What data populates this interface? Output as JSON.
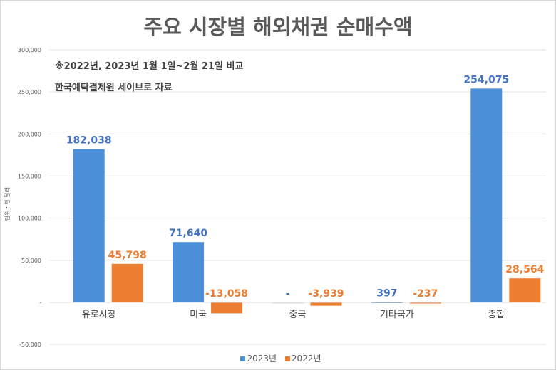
{
  "chart_data": {
    "type": "bar",
    "title": "주요 시장별 해외채권 순매수액",
    "annotations": [
      "※2022년, 2023년 1월 1일~2월 21일 비교",
      "한국예탁결제원 세이브로 자료"
    ],
    "ylabel": "단위 : 만 달러",
    "ylim": [
      -50000,
      300000
    ],
    "yticks": [
      -50000,
      0,
      50000,
      100000,
      150000,
      200000,
      250000,
      300000
    ],
    "ytick_labels": [
      "-50,000",
      "-",
      "50,000",
      "100,000",
      "150,000",
      "200,000",
      "250,000",
      "300,000"
    ],
    "grid": true,
    "legend_position": "bottom",
    "categories": [
      "유로시장",
      "미국",
      "중국",
      "기타국가",
      "종합"
    ],
    "series": [
      {
        "name": "2023년",
        "color": "#4a8fd8",
        "values": [
          182038,
          71640,
          0,
          397,
          254075
        ],
        "labels": [
          "182,038",
          "71,640",
          "-",
          "397",
          "254,075"
        ],
        "label_color": "#4472c4"
      },
      {
        "name": "2022년",
        "color": "#ed7d31",
        "values": [
          45798,
          -13058,
          -3939,
          -237,
          28564
        ],
        "labels": [
          "45,798",
          "-13,058",
          "-3,939",
          "-237",
          "28,564"
        ],
        "label_color": "#ed7d31"
      }
    ]
  }
}
